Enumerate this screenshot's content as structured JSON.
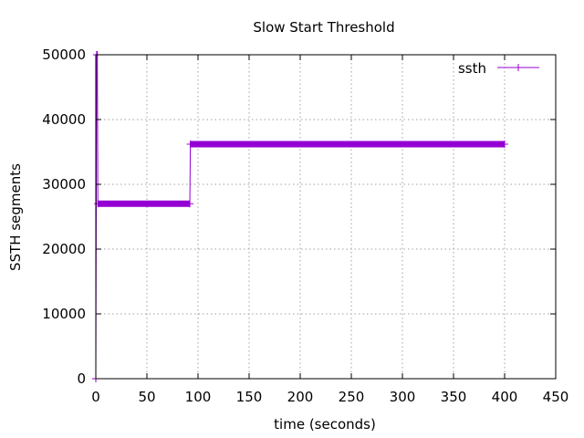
{
  "chart_data": {
    "type": "line",
    "title": "Slow Start Threshold",
    "xlabel": "time (seconds)",
    "ylabel": "SSTH segments",
    "xlim": [
      0,
      450
    ],
    "ylim": [
      0,
      50000
    ],
    "xticks": [
      0,
      50,
      100,
      150,
      200,
      250,
      300,
      350,
      400,
      450
    ],
    "yticks": [
      0,
      10000,
      20000,
      30000,
      40000,
      50000
    ],
    "grid": true,
    "legend_position": "top-right",
    "series": [
      {
        "name": "ssth",
        "color": "#9400d3",
        "marker": "plus",
        "x": [
          0,
          0.8,
          1.5,
          2,
          92,
          92.5,
          400
        ],
        "y": [
          0,
          50000,
          50000,
          27000,
          27000,
          36200,
          36200
        ]
      }
    ]
  }
}
